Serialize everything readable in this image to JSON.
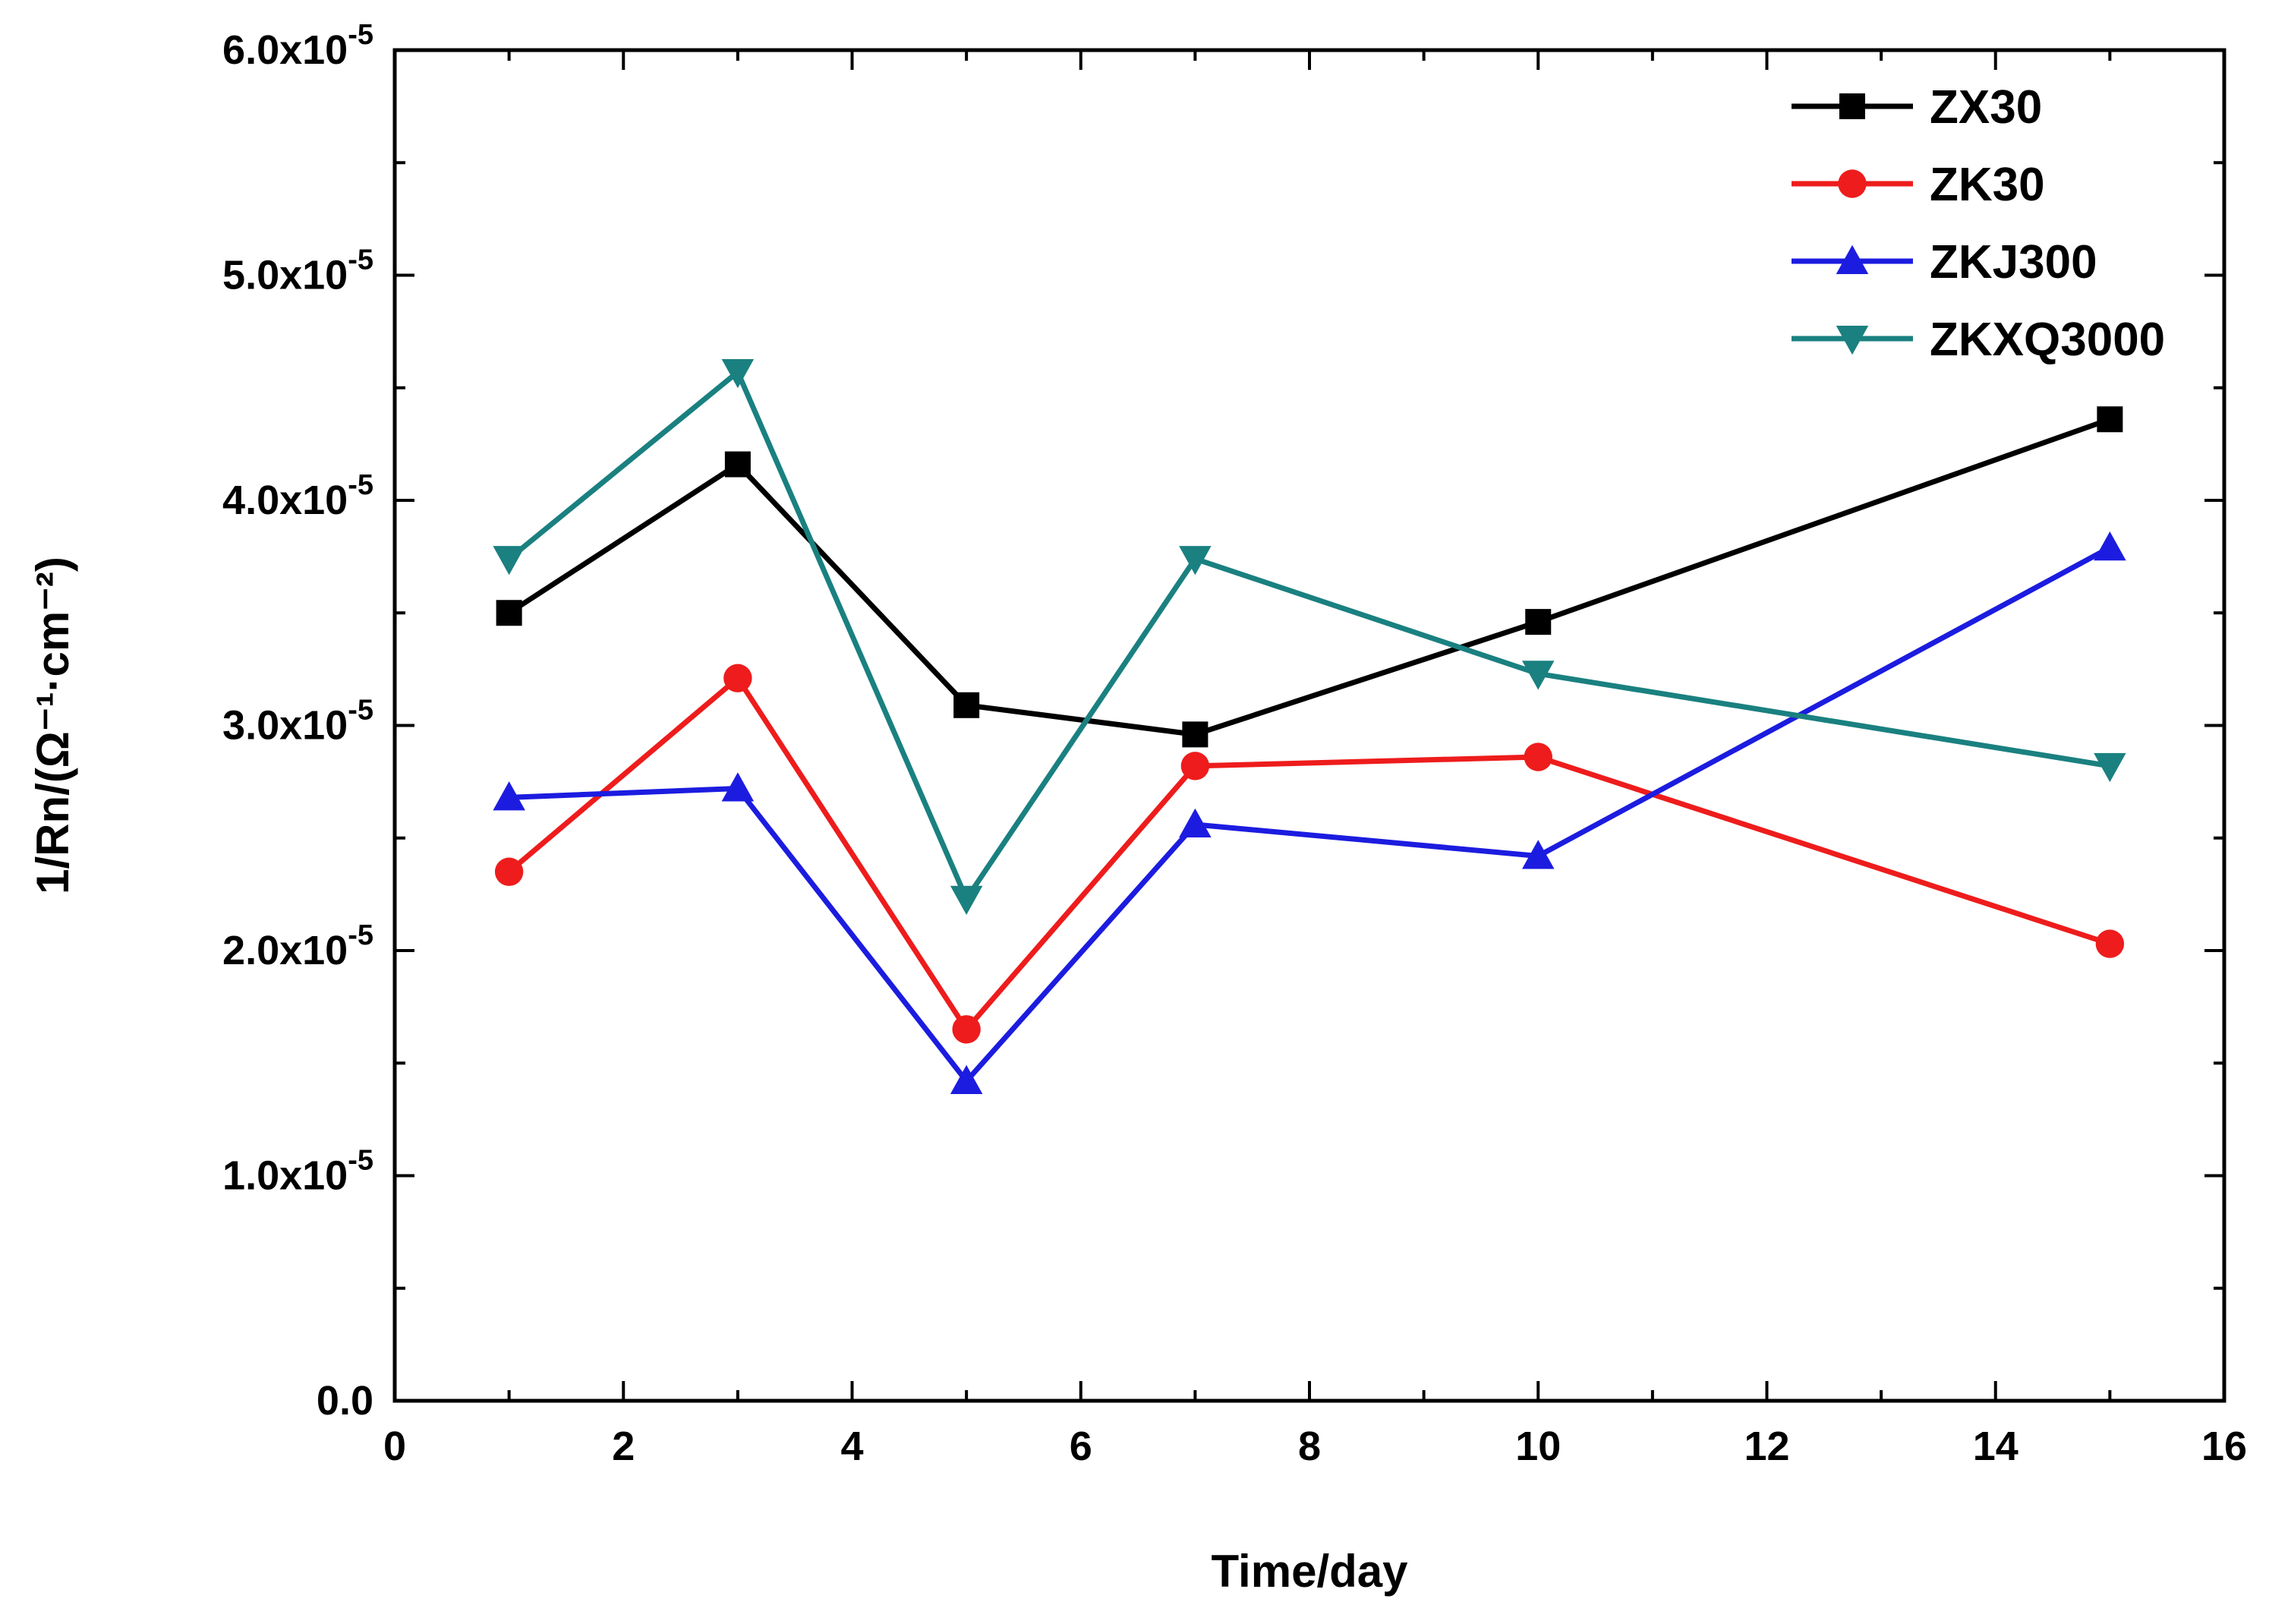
{
  "chart_data": {
    "type": "line",
    "title": "",
    "xlabel": "Time/day",
    "ylabel": "1/Rn/(Ω⁻¹·cm⁻²)",
    "xlim": [
      0,
      16
    ],
    "ylim": [
      0.0,
      6e-05
    ],
    "xticks": [
      0,
      2,
      4,
      6,
      8,
      10,
      12,
      14,
      16
    ],
    "xtick_labels": [
      "0",
      "2",
      "4",
      "6",
      "8",
      "10",
      "12",
      "14",
      "16"
    ],
    "yticks": [
      0.0,
      1e-05,
      2e-05,
      3e-05,
      4e-05,
      5e-05,
      6e-05
    ],
    "ytick_labels": [
      {
        "mantissa": "0.0",
        "exponent": ""
      },
      {
        "mantissa": "1.0x10",
        "exponent": "-5"
      },
      {
        "mantissa": "2.0x10",
        "exponent": "-5"
      },
      {
        "mantissa": "3.0x10",
        "exponent": "-5"
      },
      {
        "mantissa": "4.0x10",
        "exponent": "-5"
      },
      {
        "mantissa": "5.0x10",
        "exponent": "-5"
      },
      {
        "mantissa": "6.0x10",
        "exponent": "-5"
      }
    ],
    "legend_position": "top-right",
    "grid": false,
    "x": [
      1,
      3,
      5,
      7,
      10,
      15
    ],
    "series": [
      {
        "name": "ZX30",
        "color": "#000000",
        "marker": "square",
        "values": [
          3.5e-05,
          4.16e-05,
          3.09e-05,
          2.96e-05,
          3.46e-05,
          4.36e-05
        ]
      },
      {
        "name": "ZK30",
        "color": "#ee1c1c",
        "marker": "circle",
        "values": [
          2.35e-05,
          3.21e-05,
          1.65e-05,
          2.82e-05,
          2.86e-05,
          2.03e-05
        ]
      },
      {
        "name": "ZKJ300",
        "color": "#1c1ce0",
        "marker": "triangle-up",
        "values": [
          2.68e-05,
          2.72e-05,
          1.42e-05,
          2.56e-05,
          2.42e-05,
          3.79e-05
        ]
      },
      {
        "name": "ZKXQ3000",
        "color": "#1a8080",
        "marker": "triangle-down",
        "values": [
          3.74e-05,
          4.57e-05,
          2.23e-05,
          3.74e-05,
          3.23e-05,
          2.82e-05
        ]
      }
    ]
  }
}
